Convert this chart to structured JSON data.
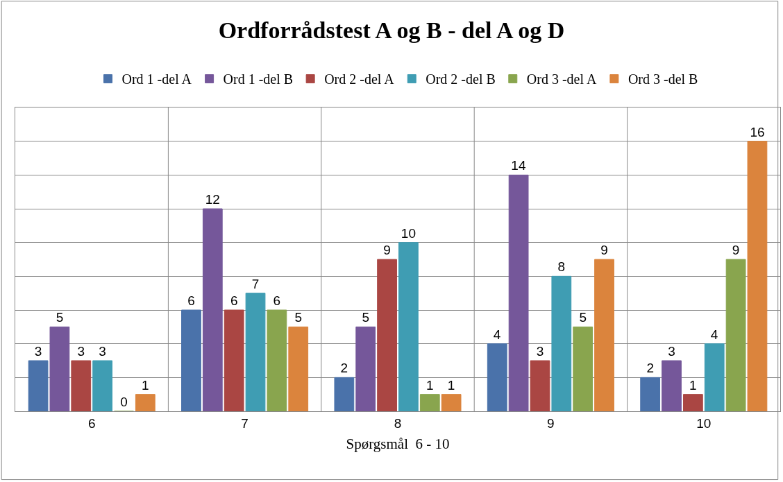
{
  "chart_data": {
    "type": "bar",
    "title": "Ordforrådstest A og B - del A og D",
    "xlabel": "Spørgsmål  6 - 10",
    "categories": [
      "6",
      "7",
      "8",
      "9",
      "10"
    ],
    "series": [
      {
        "name": "Ord 1 -del A",
        "color": "#4a72aa",
        "values": [
          3,
          6,
          2,
          4,
          2
        ]
      },
      {
        "name": "Ord 1 -del B",
        "color": "#75579a",
        "values": [
          5,
          12,
          5,
          14,
          3
        ]
      },
      {
        "name": "Ord 2 -del A",
        "color": "#aa4643",
        "values": [
          3,
          6,
          9,
          3,
          1
        ]
      },
      {
        "name": "Ord 2 -del B",
        "color": "#3f9db3",
        "values": [
          3,
          7,
          10,
          8,
          4
        ]
      },
      {
        "name": "Ord 3 -del A",
        "color": "#89a54e",
        "values": [
          0,
          6,
          1,
          5,
          9
        ]
      },
      {
        "name": "Ord 3 -del B",
        "color": "#db843d",
        "values": [
          1,
          5,
          1,
          9,
          16
        ]
      }
    ],
    "ylim": [
      0,
      18
    ],
    "yticks": [
      {
        "value": 0,
        "label": null
      },
      {
        "value": 2,
        "label": null
      },
      {
        "value": 4,
        "label": null
      },
      {
        "value": 6,
        "label": null
      },
      {
        "value": 8,
        "label": null
      },
      {
        "value": 10,
        "label": null
      },
      {
        "value": 12,
        "label": null
      },
      {
        "value": 14,
        "label": null
      },
      {
        "value": 16,
        "label": null
      },
      {
        "value": 18,
        "label": null
      }
    ],
    "tick_labels": "x",
    "grid": true,
    "legend": "top",
    "data_labels": true
  }
}
